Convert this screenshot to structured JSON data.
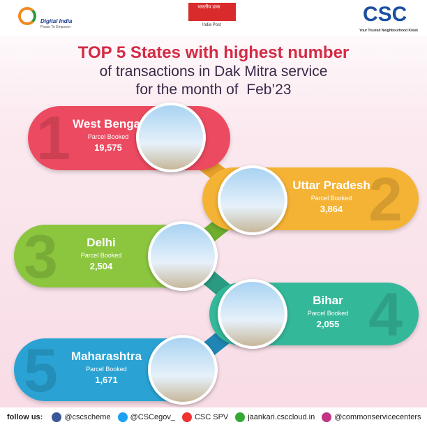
{
  "header": {
    "digital_india": "Digital India",
    "digital_tagline": "Power To Empower",
    "post_hindi": "भारतीय डाक",
    "post": "India Post",
    "csc": "CSC",
    "csc_tagline": "Your Trusted Neighbourhood Kiosk"
  },
  "title": {
    "line1": "TOP 5 States with highest number",
    "line2": "of transactions in Dak Mitra service",
    "line3": "for the month of  Feb’23"
  },
  "states": [
    {
      "rank": "1",
      "name": "West Bengal",
      "metric": "Parcel Booked",
      "value": "19,575"
    },
    {
      "rank": "2",
      "name": "Uttar Pradesh",
      "metric": "Parcel Booked",
      "value": "3,864"
    },
    {
      "rank": "3",
      "name": "Delhi",
      "metric": "Parcel Booked",
      "value": "2,504"
    },
    {
      "rank": "4",
      "name": "Bihar",
      "metric": "Parcel Booked",
      "value": "2,055"
    },
    {
      "rank": "5",
      "name": "Maharashtra",
      "metric": "Parcel Booked",
      "value": "1,671"
    }
  ],
  "footer": {
    "label": "follow us:",
    "links": [
      "@cscscheme",
      "@CSCegov_",
      "CSC SPV",
      "jaankari.csccloud.in",
      "@commonservicecenters"
    ]
  }
}
